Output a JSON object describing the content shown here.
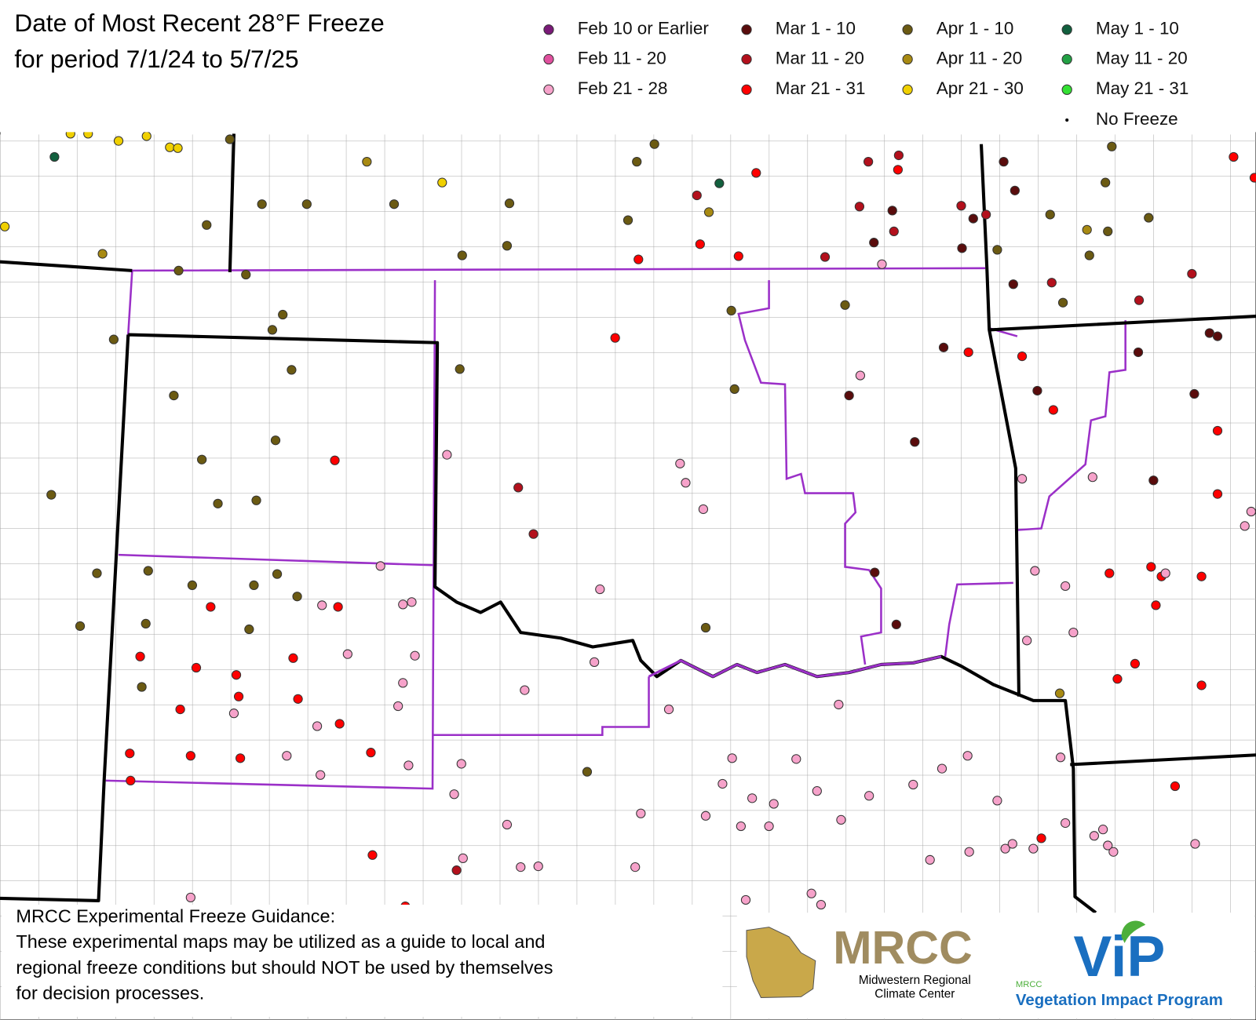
{
  "header": {
    "title_lines": [
      "Date of Most Recent 28°F Freeze",
      "for period 7/1/24 to 5/7/25"
    ]
  },
  "legend": {
    "items": [
      {
        "label": "Feb 10 or Earlier",
        "color": "#7a1a78"
      },
      {
        "label": "Mar 1 - 10",
        "color": "#5a0c0c"
      },
      {
        "label": "Apr 1 - 10",
        "color": "#6b5a12"
      },
      {
        "label": "May 1 - 10",
        "color": "#12603e"
      },
      {
        "label": "Feb 11 - 20",
        "color": "#e0509e"
      },
      {
        "label": "Mar 11 - 20",
        "color": "#b3101c"
      },
      {
        "label": "Apr 11 - 20",
        "color": "#a88a12"
      },
      {
        "label": "May 11 - 20",
        "color": "#22a044"
      },
      {
        "label": "Feb 21 - 28",
        "color": "#f6a2ca"
      },
      {
        "label": "Mar 21 - 31",
        "color": "#ff0000"
      },
      {
        "label": "Apr 21 - 30",
        "color": "#f0d000"
      },
      {
        "label": "May 21 - 31",
        "color": "#33e033"
      },
      {
        "label": "No Freeze",
        "color": "#000000"
      }
    ]
  },
  "note": {
    "lines": [
      "MRCC Experimental Freeze Guidance:",
      "These experimental maps may be utilized as a guide to local and",
      "regional freeze conditions but should NOT be used by themselves",
      "for decision processes."
    ]
  },
  "logos": {
    "mrcc": "MRCC",
    "mrcc_sub": [
      "Midwestern Regional",
      "Climate Center"
    ],
    "vip": "ViP",
    "vip_small": "MRCC",
    "vip_sub": "Vegetation Impact Program"
  }
}
